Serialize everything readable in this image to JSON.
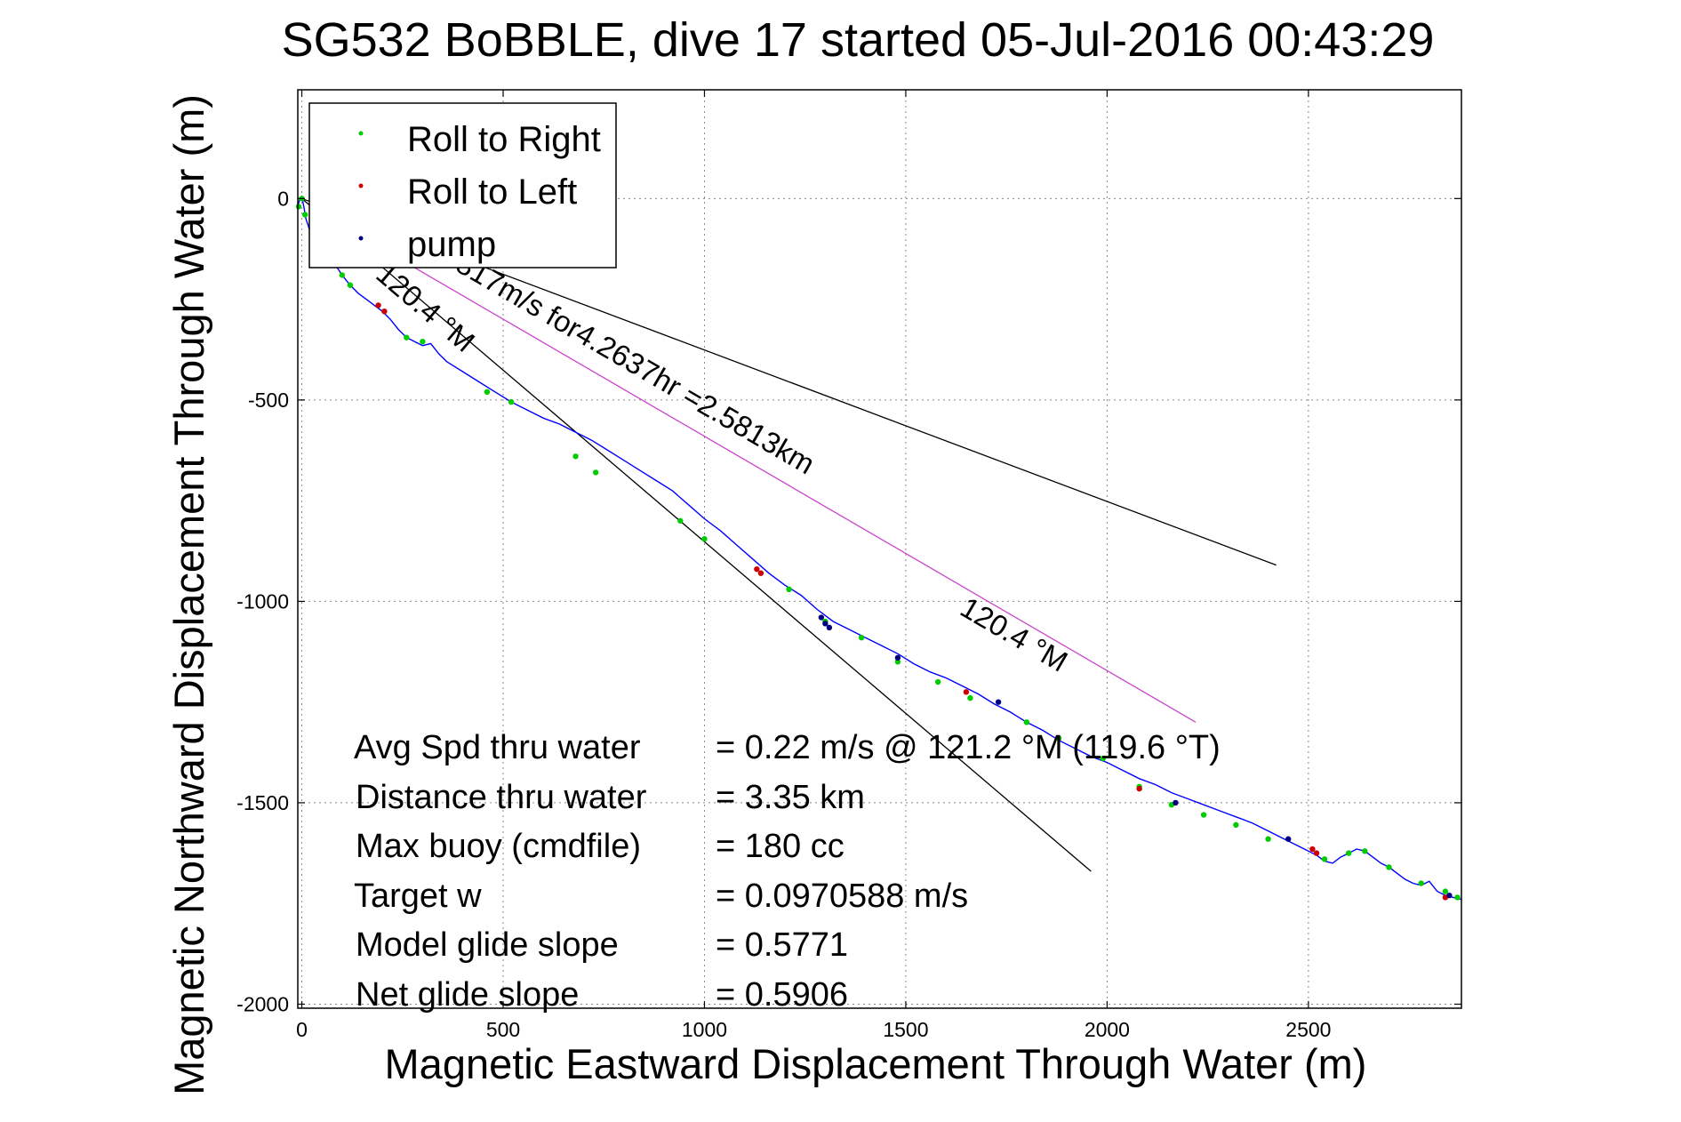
{
  "chart_data": {
    "type": "line",
    "title": "SG532 BoBBLE, dive 17 started 05-Jul-2016 00:43:29",
    "xlabel": "Magnetic Eastward Displacement Through Water (m)",
    "ylabel": "Magnetic Northward Displacement Through Water (m)",
    "xlim": [
      -10,
      2880
    ],
    "ylim": [
      -2010,
      270
    ],
    "xticks": [
      0,
      500,
      1000,
      1500,
      2000,
      2500
    ],
    "yticks": [
      0,
      -500,
      -1000,
      -1500,
      -2000
    ],
    "xtick_labels": [
      "0",
      "500",
      "1000",
      "1500",
      "2000",
      "2500"
    ],
    "ytick_labels": [
      "0",
      "-500",
      "-1000",
      "-1500",
      "-2000"
    ],
    "grid": true,
    "legend_position": "top-left",
    "colors": {
      "roll_right": "#00cc00",
      "roll_left": "#cc0000",
      "pump": "#000080",
      "track": "#0000ff",
      "heading_line": "#000000",
      "current_line": "#cc44cc"
    },
    "legend": [
      {
        "label": "Roll to Right",
        "marker": "point",
        "color": "#00cc00"
      },
      {
        "label": "Roll to Left",
        "marker": "point",
        "color": "#cc0000"
      },
      {
        "label": "pump",
        "marker": "point",
        "color": "#000080"
      }
    ],
    "series": [
      {
        "name": "track",
        "style": "line",
        "x": [
          -10,
          -5,
          0,
          5,
          10,
          20,
          40,
          60,
          80,
          100,
          120,
          140,
          160,
          180,
          200,
          220,
          240,
          260,
          280,
          300,
          320,
          340,
          360,
          400,
          440,
          480,
          520,
          560,
          600,
          640,
          680,
          720,
          760,
          800,
          840,
          880,
          920,
          960,
          1000,
          1040,
          1080,
          1120,
          1160,
          1200,
          1240,
          1280,
          1320,
          1360,
          1400,
          1440,
          1480,
          1520,
          1560,
          1600,
          1640,
          1680,
          1720,
          1760,
          1800,
          1840,
          1880,
          1920,
          1960,
          2000,
          2040,
          2080,
          2120,
          2160,
          2200,
          2240,
          2280,
          2320,
          2360,
          2400,
          2440,
          2480,
          2520,
          2540,
          2560,
          2580,
          2600,
          2620,
          2640,
          2660,
          2680,
          2700,
          2720,
          2740,
          2760,
          2780,
          2800,
          2820,
          2840,
          2860,
          2880
        ],
        "y": [
          -20,
          0,
          5,
          -20,
          -50,
          -80,
          -100,
          -130,
          -160,
          -190,
          -215,
          -235,
          -250,
          -265,
          -280,
          -300,
          -325,
          -345,
          -355,
          -365,
          -360,
          -385,
          -405,
          -430,
          -455,
          -480,
          -505,
          -525,
          -545,
          -560,
          -580,
          -600,
          -625,
          -650,
          -675,
          -700,
          -725,
          -760,
          -795,
          -825,
          -860,
          -895,
          -930,
          -960,
          -985,
          -1020,
          -1050,
          -1070,
          -1090,
          -1110,
          -1130,
          -1155,
          -1175,
          -1190,
          -1210,
          -1230,
          -1255,
          -1275,
          -1300,
          -1320,
          -1345,
          -1365,
          -1385,
          -1400,
          -1420,
          -1440,
          -1455,
          -1475,
          -1490,
          -1505,
          -1520,
          -1535,
          -1550,
          -1570,
          -1590,
          -1610,
          -1630,
          -1645,
          -1650,
          -1635,
          -1625,
          -1615,
          -1620,
          -1635,
          -1650,
          -1660,
          -1675,
          -1690,
          -1700,
          -1705,
          -1695,
          -1720,
          -1730,
          -1735,
          -1740
        ]
      },
      {
        "name": "Roll to Right",
        "style": "points",
        "x": [
          -8,
          0,
          8,
          100,
          120,
          260,
          300,
          460,
          520,
          680,
          730,
          940,
          1000,
          1210,
          1300,
          1390,
          1480,
          1580,
          1660,
          1800,
          1880,
          1990,
          2080,
          2160,
          2240,
          2320,
          2400,
          2540,
          2600,
          2640,
          2700,
          2780,
          2840,
          2870
        ],
        "y": [
          -20,
          0,
          -40,
          -190,
          -215,
          -345,
          -355,
          -480,
          -505,
          -640,
          -680,
          -800,
          -845,
          -970,
          -1050,
          -1090,
          -1150,
          -1200,
          -1240,
          -1300,
          -1340,
          -1390,
          -1460,
          -1505,
          -1530,
          -1555,
          -1590,
          -1640,
          -1625,
          -1620,
          -1660,
          -1700,
          -1720,
          -1735
        ]
      },
      {
        "name": "Roll to Left",
        "style": "points",
        "x": [
          190,
          205,
          1130,
          1140,
          1650,
          2080,
          2510,
          2520,
          2840
        ],
        "y": [
          -265,
          -280,
          -920,
          -930,
          -1225,
          -1465,
          -1615,
          -1625,
          -1735
        ]
      },
      {
        "name": "pump",
        "style": "points",
        "x": [
          1290,
          1300,
          1310,
          1480,
          1730,
          2170,
          2450,
          2850
        ],
        "y": [
          -1040,
          -1055,
          -1065,
          -1140,
          -1250,
          -1500,
          -1590,
          -1730
        ]
      }
    ],
    "reference_lines": [
      {
        "name": "heading-line-long",
        "x": [
          0,
          2420
        ],
        "y": [
          0,
          -910
        ],
        "color": "#000000"
      },
      {
        "name": "heading-line-steep",
        "x": [
          0,
          1960
        ],
        "y": [
          0,
          -1670
        ],
        "color": "#000000"
      },
      {
        "name": "current-line",
        "x": [
          140,
          2220
        ],
        "y": [
          -90,
          -1300
        ],
        "color": "#cc44cc"
      }
    ],
    "annotations": {
      "speed": "0.16817m/s for4.2637hr =2.5813km",
      "heading_near": "120.4 °M",
      "heading_far": "120.4 °M"
    },
    "stats": [
      {
        "label": "Avg Spd thru water",
        "value": "=  0.22 m/s @ 121.2 °M (119.6 °T)"
      },
      {
        "label": "Distance thru water",
        "value": "=  3.35 km"
      },
      {
        "label": "Max buoy (cmdfile)",
        "value": "= 180 cc"
      },
      {
        "label": "Target w",
        "value": "= 0.0970588 m/s"
      },
      {
        "label": "Model glide slope",
        "value": "= 0.5771"
      },
      {
        "label": "Net glide slope",
        "value": "= 0.5906"
      }
    ]
  }
}
